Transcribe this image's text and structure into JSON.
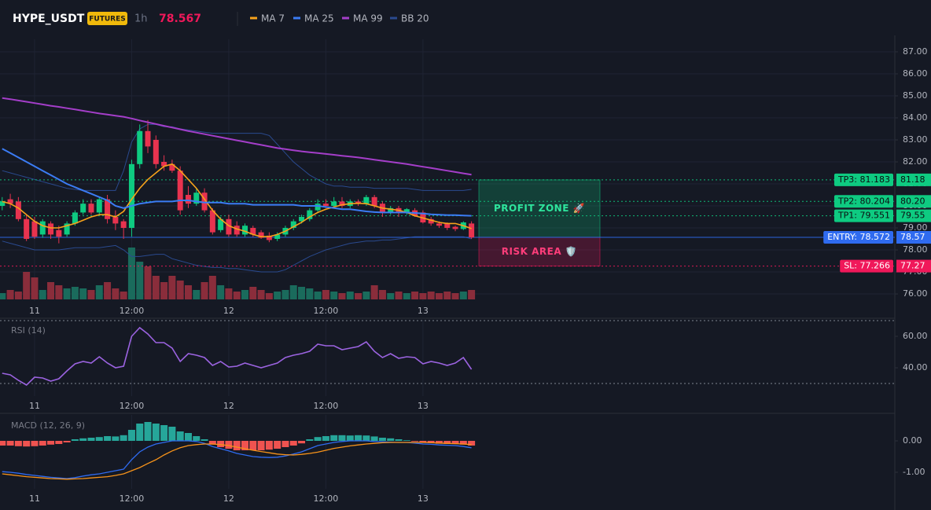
{
  "header": {
    "symbol": "HYPE_USDT",
    "badge": "FUTURES",
    "interval": "1h",
    "price": 78.567
  },
  "chart_data": [
    {
      "type": "candlestick",
      "grid": true,
      "categories": [
        null,
        null,
        null,
        null,
        "11",
        null,
        null,
        null,
        null,
        null,
        null,
        null,
        null,
        null,
        null,
        null,
        "12:00",
        null,
        null,
        null,
        null,
        null,
        null,
        null,
        null,
        null,
        null,
        null,
        "12",
        null,
        null,
        null,
        null,
        null,
        null,
        null,
        null,
        null,
        null,
        null,
        "12:00",
        null,
        null,
        null,
        null,
        null,
        null,
        null,
        null,
        null,
        null,
        null,
        "13",
        null,
        null,
        null,
        null,
        null,
        null
      ],
      "open": [
        80.0,
        80.3,
        80.2,
        79.4,
        79.3,
        78.7,
        79.2,
        78.9,
        78.7,
        79.2,
        79.7,
        80.1,
        79.7,
        80.3,
        79.5,
        79.3,
        79.0,
        81.9,
        83.4,
        83.0,
        82.0,
        81.9,
        81.6,
        80.5,
        80.1,
        80.6,
        79.8,
        78.9,
        79.4,
        79.1,
        78.7,
        79.0,
        78.8,
        78.65,
        78.5,
        78.7,
        79.0,
        79.3,
        79.4,
        79.8,
        80.1,
        80.0,
        80.2,
        80.0,
        80.2,
        80.1,
        80.4,
        80.1,
        79.7,
        79.9,
        79.7,
        79.8,
        79.7,
        79.4,
        79.2,
        79.2,
        79.05,
        78.95,
        79.2
      ],
      "high": [
        80.4,
        80.55,
        80.4,
        79.6,
        79.5,
        79.4,
        79.3,
        79.1,
        79.3,
        79.8,
        80.3,
        80.3,
        80.4,
        80.5,
        79.8,
        79.4,
        82.1,
        83.7,
        83.9,
        83.2,
        82.3,
        82.1,
        81.8,
        80.9,
        80.8,
        80.8,
        79.9,
        79.5,
        79.6,
        79.3,
        79.2,
        79.1,
        78.9,
        78.8,
        78.8,
        79.1,
        79.4,
        79.6,
        79.9,
        80.3,
        80.3,
        80.4,
        80.4,
        80.3,
        80.3,
        80.5,
        80.5,
        80.2,
        80.0,
        80.0,
        79.9,
        79.9,
        79.8,
        79.5,
        79.3,
        79.25,
        79.1,
        79.3,
        79.3
      ],
      "low": [
        79.8,
        79.9,
        79.3,
        78.4,
        78.5,
        78.55,
        78.5,
        78.3,
        78.6,
        79.1,
        79.6,
        79.6,
        79.6,
        79.2,
        78.9,
        78.5,
        78.6,
        81.7,
        82.4,
        81.7,
        81.6,
        81.5,
        79.6,
        79.9,
        80.0,
        79.7,
        78.7,
        78.8,
        78.6,
        78.6,
        78.6,
        78.6,
        78.5,
        78.35,
        78.4,
        78.6,
        78.9,
        79.2,
        79.3,
        79.7,
        79.9,
        79.9,
        79.9,
        79.9,
        80.0,
        80.0,
        79.9,
        79.5,
        79.6,
        79.5,
        79.6,
        79.5,
        79.2,
        79.1,
        79.0,
        78.9,
        78.85,
        78.9,
        78.5
      ],
      "close": [
        80.2,
        80.1,
        79.4,
        78.5,
        78.6,
        79.3,
        78.7,
        78.6,
        79.2,
        79.7,
        80.1,
        79.7,
        80.3,
        79.4,
        79.2,
        79.0,
        81.9,
        83.4,
        82.7,
        81.9,
        81.8,
        81.6,
        79.8,
        80.1,
        80.6,
        79.8,
        78.8,
        79.4,
        78.7,
        78.7,
        79.1,
        78.7,
        78.55,
        78.45,
        78.7,
        79.0,
        79.3,
        79.5,
        79.8,
        80.1,
        80.0,
        80.2,
        80.0,
        80.2,
        80.1,
        80.4,
        80.0,
        79.7,
        79.9,
        79.7,
        79.85,
        79.55,
        79.25,
        79.2,
        79.1,
        79.0,
        78.95,
        79.25,
        78.567
      ],
      "volume": [
        8,
        12,
        10,
        35,
        28,
        12,
        22,
        18,
        14,
        16,
        14,
        12,
        18,
        22,
        14,
        10,
        66,
        48,
        42,
        30,
        22,
        30,
        24,
        18,
        12,
        22,
        30,
        18,
        14,
        10,
        12,
        16,
        12,
        8,
        10,
        12,
        18,
        16,
        14,
        10,
        12,
        10,
        8,
        10,
        8,
        10,
        18,
        12,
        8,
        10,
        8,
        10,
        8,
        10,
        8,
        10,
        8,
        10,
        12
      ],
      "up_color": "#0ecb81",
      "down_color": "#e8334f",
      "volume_up_color": "#1a6b5c",
      "volume_down_color": "#8a2d3b",
      "series": [
        {
          "name": "MA 7",
          "color": "#f7a21b",
          "values": [
            80.2,
            80.1,
            79.9,
            79.6,
            79.3,
            79.1,
            79.0,
            79.0,
            79.1,
            79.2,
            79.35,
            79.5,
            79.6,
            79.6,
            79.5,
            79.75,
            80.3,
            80.8,
            81.2,
            81.5,
            81.8,
            81.9,
            81.6,
            81.2,
            80.8,
            80.3,
            79.8,
            79.4,
            79.1,
            78.95,
            78.85,
            78.7,
            78.6,
            78.6,
            78.7,
            78.85,
            79.05,
            79.25,
            79.5,
            79.7,
            79.85,
            79.95,
            80.05,
            80.1,
            80.12,
            80.1,
            80.0,
            79.9,
            79.85,
            79.8,
            79.7,
            79.55,
            79.45,
            79.35,
            79.25,
            79.2,
            79.2,
            79.1,
            78.97
          ]
        },
        {
          "name": "MA 25",
          "color": "#3b7cf4",
          "values": [
            82.6,
            82.4,
            82.2,
            82.0,
            81.8,
            81.6,
            81.4,
            81.2,
            81.0,
            80.85,
            80.7,
            80.55,
            80.4,
            80.25,
            80.0,
            79.9,
            80.0,
            80.1,
            80.15,
            80.2,
            80.2,
            80.2,
            80.25,
            80.25,
            80.2,
            80.15,
            80.15,
            80.15,
            80.1,
            80.1,
            80.1,
            80.05,
            80.05,
            80.05,
            80.05,
            80.05,
            80.05,
            80.0,
            80.0,
            80.0,
            79.95,
            79.9,
            79.85,
            79.85,
            79.8,
            79.75,
            79.72,
            79.7,
            79.7,
            79.7,
            79.7,
            79.68,
            79.65,
            79.62,
            79.6,
            79.58,
            79.58,
            79.56,
            79.55
          ]
        },
        {
          "name": "MA 99",
          "color": "#a43ec9",
          "values": [
            84.9,
            84.85,
            84.79,
            84.73,
            84.67,
            84.61,
            84.55,
            84.5,
            84.44,
            84.38,
            84.32,
            84.26,
            84.2,
            84.15,
            84.1,
            84.05,
            83.97,
            83.88,
            83.8,
            83.72,
            83.64,
            83.56,
            83.48,
            83.4,
            83.33,
            83.26,
            83.19,
            83.12,
            83.05,
            82.98,
            82.91,
            82.84,
            82.77,
            82.7,
            82.63,
            82.58,
            82.53,
            82.48,
            82.44,
            82.4,
            82.36,
            82.32,
            82.28,
            82.24,
            82.2,
            82.15,
            82.1,
            82.05,
            82.0,
            81.95,
            81.9,
            81.84,
            81.78,
            81.72,
            81.66,
            81.6,
            81.54,
            81.48,
            81.42
          ]
        },
        {
          "name": "BB 20",
          "color": "#2a4a8f",
          "upper": [
            81.6,
            81.5,
            81.4,
            81.3,
            81.2,
            81.1,
            81.0,
            80.9,
            80.8,
            80.75,
            80.7,
            80.7,
            80.7,
            80.7,
            80.7,
            81.6,
            82.9,
            83.5,
            83.7,
            83.7,
            83.6,
            83.6,
            83.5,
            83.45,
            83.4,
            83.35,
            83.3,
            83.3,
            83.3,
            83.3,
            83.3,
            83.3,
            83.3,
            83.2,
            82.8,
            82.4,
            82.0,
            81.7,
            81.4,
            81.2,
            81.0,
            80.9,
            80.9,
            80.85,
            80.85,
            80.85,
            80.8,
            80.8,
            80.8,
            80.8,
            80.8,
            80.75,
            80.7,
            80.7,
            80.7,
            80.7,
            80.7,
            80.7,
            80.75
          ],
          "lower": [
            78.4,
            78.3,
            78.2,
            78.1,
            78.0,
            78.0,
            78.0,
            78.0,
            78.05,
            78.1,
            78.1,
            78.1,
            78.1,
            78.15,
            78.2,
            78.0,
            77.7,
            77.7,
            77.75,
            77.8,
            77.8,
            77.6,
            77.5,
            77.4,
            77.3,
            77.25,
            77.2,
            77.2,
            77.15,
            77.15,
            77.1,
            77.05,
            77.0,
            77.0,
            77.0,
            77.1,
            77.3,
            77.5,
            77.7,
            77.85,
            78.0,
            78.1,
            78.2,
            78.3,
            78.35,
            78.4,
            78.4,
            78.45,
            78.45,
            78.5,
            78.55,
            78.6,
            78.6,
            78.6,
            78.6,
            78.6,
            78.6,
            78.6,
            78.5
          ]
        }
      ],
      "ylim": [
        75.68,
        87.57
      ],
      "yticks": [
        {
          "value": 76,
          "label": "76.00"
        },
        {
          "value": 77,
          "label": "77.00"
        },
        {
          "value": 78,
          "label": "78.00"
        },
        {
          "value": 79,
          "label": "79.00"
        },
        {
          "value": 80,
          "label": "80.00"
        },
        {
          "value": 81,
          "label": "81.00"
        },
        {
          "value": 82,
          "label": "82.00"
        },
        {
          "value": 83,
          "label": "83.00"
        },
        {
          "value": 84,
          "label": "84.00"
        },
        {
          "value": 85,
          "label": "85.00"
        },
        {
          "value": 86,
          "label": "86.00"
        },
        {
          "value": 87,
          "label": "87.00"
        }
      ],
      "levels": [
        {
          "label": "TP3: 81.183",
          "value": 81.183,
          "axis_label": "81.18",
          "color": "#0ecb81",
          "text_color": "#0b0e11",
          "style": "dotted"
        },
        {
          "label": "TP2: 80.204",
          "value": 80.204,
          "axis_label": "80.20",
          "color": "#0ecb81",
          "text_color": "#0b0e11",
          "style": "dotted"
        },
        {
          "label": "TP1: 79.551",
          "value": 79.551,
          "axis_label": "79.55",
          "color": "#0ecb81",
          "text_color": "#0b0e11",
          "style": "dotted"
        },
        {
          "label": "ENTRY: 78.572",
          "value": 78.572,
          "axis_label": "78.57",
          "color": "#2f6bf0",
          "text_color": "#ffffff",
          "style": "solid"
        },
        {
          "label": "SL: 77.266",
          "value": 77.266,
          "axis_label": "77.27",
          "color": "#f0185a",
          "text_color": "#ffffff",
          "style": "dotted"
        }
      ],
      "zones": [
        {
          "label": "PROFIT ZONE 🚀",
          "from": 78.572,
          "to": 81.183,
          "color": "#0ecb81",
          "text_color": "#2ee59d"
        },
        {
          "label": "RISK AREA 🛡️",
          "from": 77.266,
          "to": 78.572,
          "color": "#f0185a",
          "text_color": "#ff3d7a"
        }
      ]
    },
    {
      "type": "line",
      "title": "RSI (14)",
      "color": "#9b63e0",
      "values": [
        36.5,
        35.5,
        32,
        29,
        34,
        33.5,
        31.5,
        33,
        38,
        42.5,
        44,
        43,
        47,
        43,
        40,
        41,
        60,
        65.5,
        61.5,
        56,
        56,
        52.5,
        44,
        49,
        48,
        46.5,
        41.5,
        44,
        40.5,
        41,
        43,
        41.5,
        40,
        41.5,
        43,
        46.5,
        48,
        49,
        50.5,
        55,
        54,
        54,
        51.5,
        52.5,
        53.5,
        56.5,
        50.5,
        46.5,
        49,
        46,
        47,
        46.5,
        42.5,
        44,
        43,
        41.5,
        43,
        46.5,
        39
      ],
      "levels": [
        70,
        30
      ],
      "ylim": [
        22,
        70.5
      ],
      "yticks": [
        {
          "value": 40,
          "label": "40.00"
        },
        {
          "value": 60,
          "label": "60.00"
        }
      ]
    },
    {
      "type": "macd",
      "title": "MACD (12, 26, 9)",
      "histogram": [
        -0.15,
        -0.15,
        -0.17,
        -0.18,
        -0.17,
        -0.15,
        -0.12,
        -0.1,
        -0.05,
        0.05,
        0.08,
        0.1,
        0.12,
        0.15,
        0.14,
        0.18,
        0.35,
        0.55,
        0.6,
        0.55,
        0.5,
        0.45,
        0.3,
        0.25,
        0.15,
        0.05,
        -0.12,
        -0.2,
        -0.25,
        -0.3,
        -0.3,
        -0.3,
        -0.3,
        -0.28,
        -0.25,
        -0.2,
        -0.15,
        -0.08,
        0.05,
        0.12,
        0.15,
        0.18,
        0.18,
        0.17,
        0.18,
        0.17,
        0.14,
        0.1,
        0.08,
        0.05,
        0.02,
        -0.02,
        -0.05,
        -0.07,
        -0.09,
        -0.1,
        -0.1,
        -0.12,
        -0.15
      ],
      "macd": [
        -0.98,
        -1.0,
        -1.03,
        -1.07,
        -1.1,
        -1.13,
        -1.16,
        -1.18,
        -1.2,
        -1.17,
        -1.12,
        -1.08,
        -1.05,
        -1.0,
        -0.95,
        -0.9,
        -0.6,
        -0.35,
        -0.2,
        -0.1,
        -0.05,
        0.0,
        0.0,
        0.0,
        -0.02,
        -0.08,
        -0.18,
        -0.25,
        -0.32,
        -0.4,
        -0.45,
        -0.5,
        -0.52,
        -0.53,
        -0.52,
        -0.48,
        -0.42,
        -0.35,
        -0.25,
        -0.15,
        -0.1,
        -0.05,
        -0.02,
        0.0,
        0.0,
        0.0,
        -0.02,
        -0.03,
        -0.04,
        -0.05,
        -0.05,
        -0.07,
        -0.1,
        -0.11,
        -0.13,
        -0.14,
        -0.15,
        -0.18,
        -0.22
      ],
      "signal": [
        -1.05,
        -1.08,
        -1.11,
        -1.14,
        -1.16,
        -1.18,
        -1.2,
        -1.21,
        -1.22,
        -1.21,
        -1.2,
        -1.18,
        -1.16,
        -1.14,
        -1.1,
        -1.05,
        -0.95,
        -0.85,
        -0.72,
        -0.6,
        -0.45,
        -0.32,
        -0.22,
        -0.15,
        -0.12,
        -0.1,
        -0.1,
        -0.12,
        -0.15,
        -0.2,
        -0.25,
        -0.3,
        -0.34,
        -0.38,
        -0.42,
        -0.44,
        -0.45,
        -0.43,
        -0.4,
        -0.36,
        -0.3,
        -0.24,
        -0.2,
        -0.16,
        -0.13,
        -0.1,
        -0.08,
        -0.06,
        -0.05,
        -0.05,
        -0.05,
        -0.05,
        -0.05,
        -0.06,
        -0.07,
        -0.08,
        -0.09,
        -0.1,
        -0.12
      ],
      "hist_up_color": "#26a69a",
      "hist_down_color": "#ef5350",
      "macd_color": "#2f6bf0",
      "signal_color": "#f7931a",
      "ylim": [
        -1.525,
        0.825
      ],
      "yticks": [
        {
          "value": -1,
          "label": "-1.00"
        },
        {
          "value": 0,
          "label": "0.00"
        }
      ]
    }
  ]
}
